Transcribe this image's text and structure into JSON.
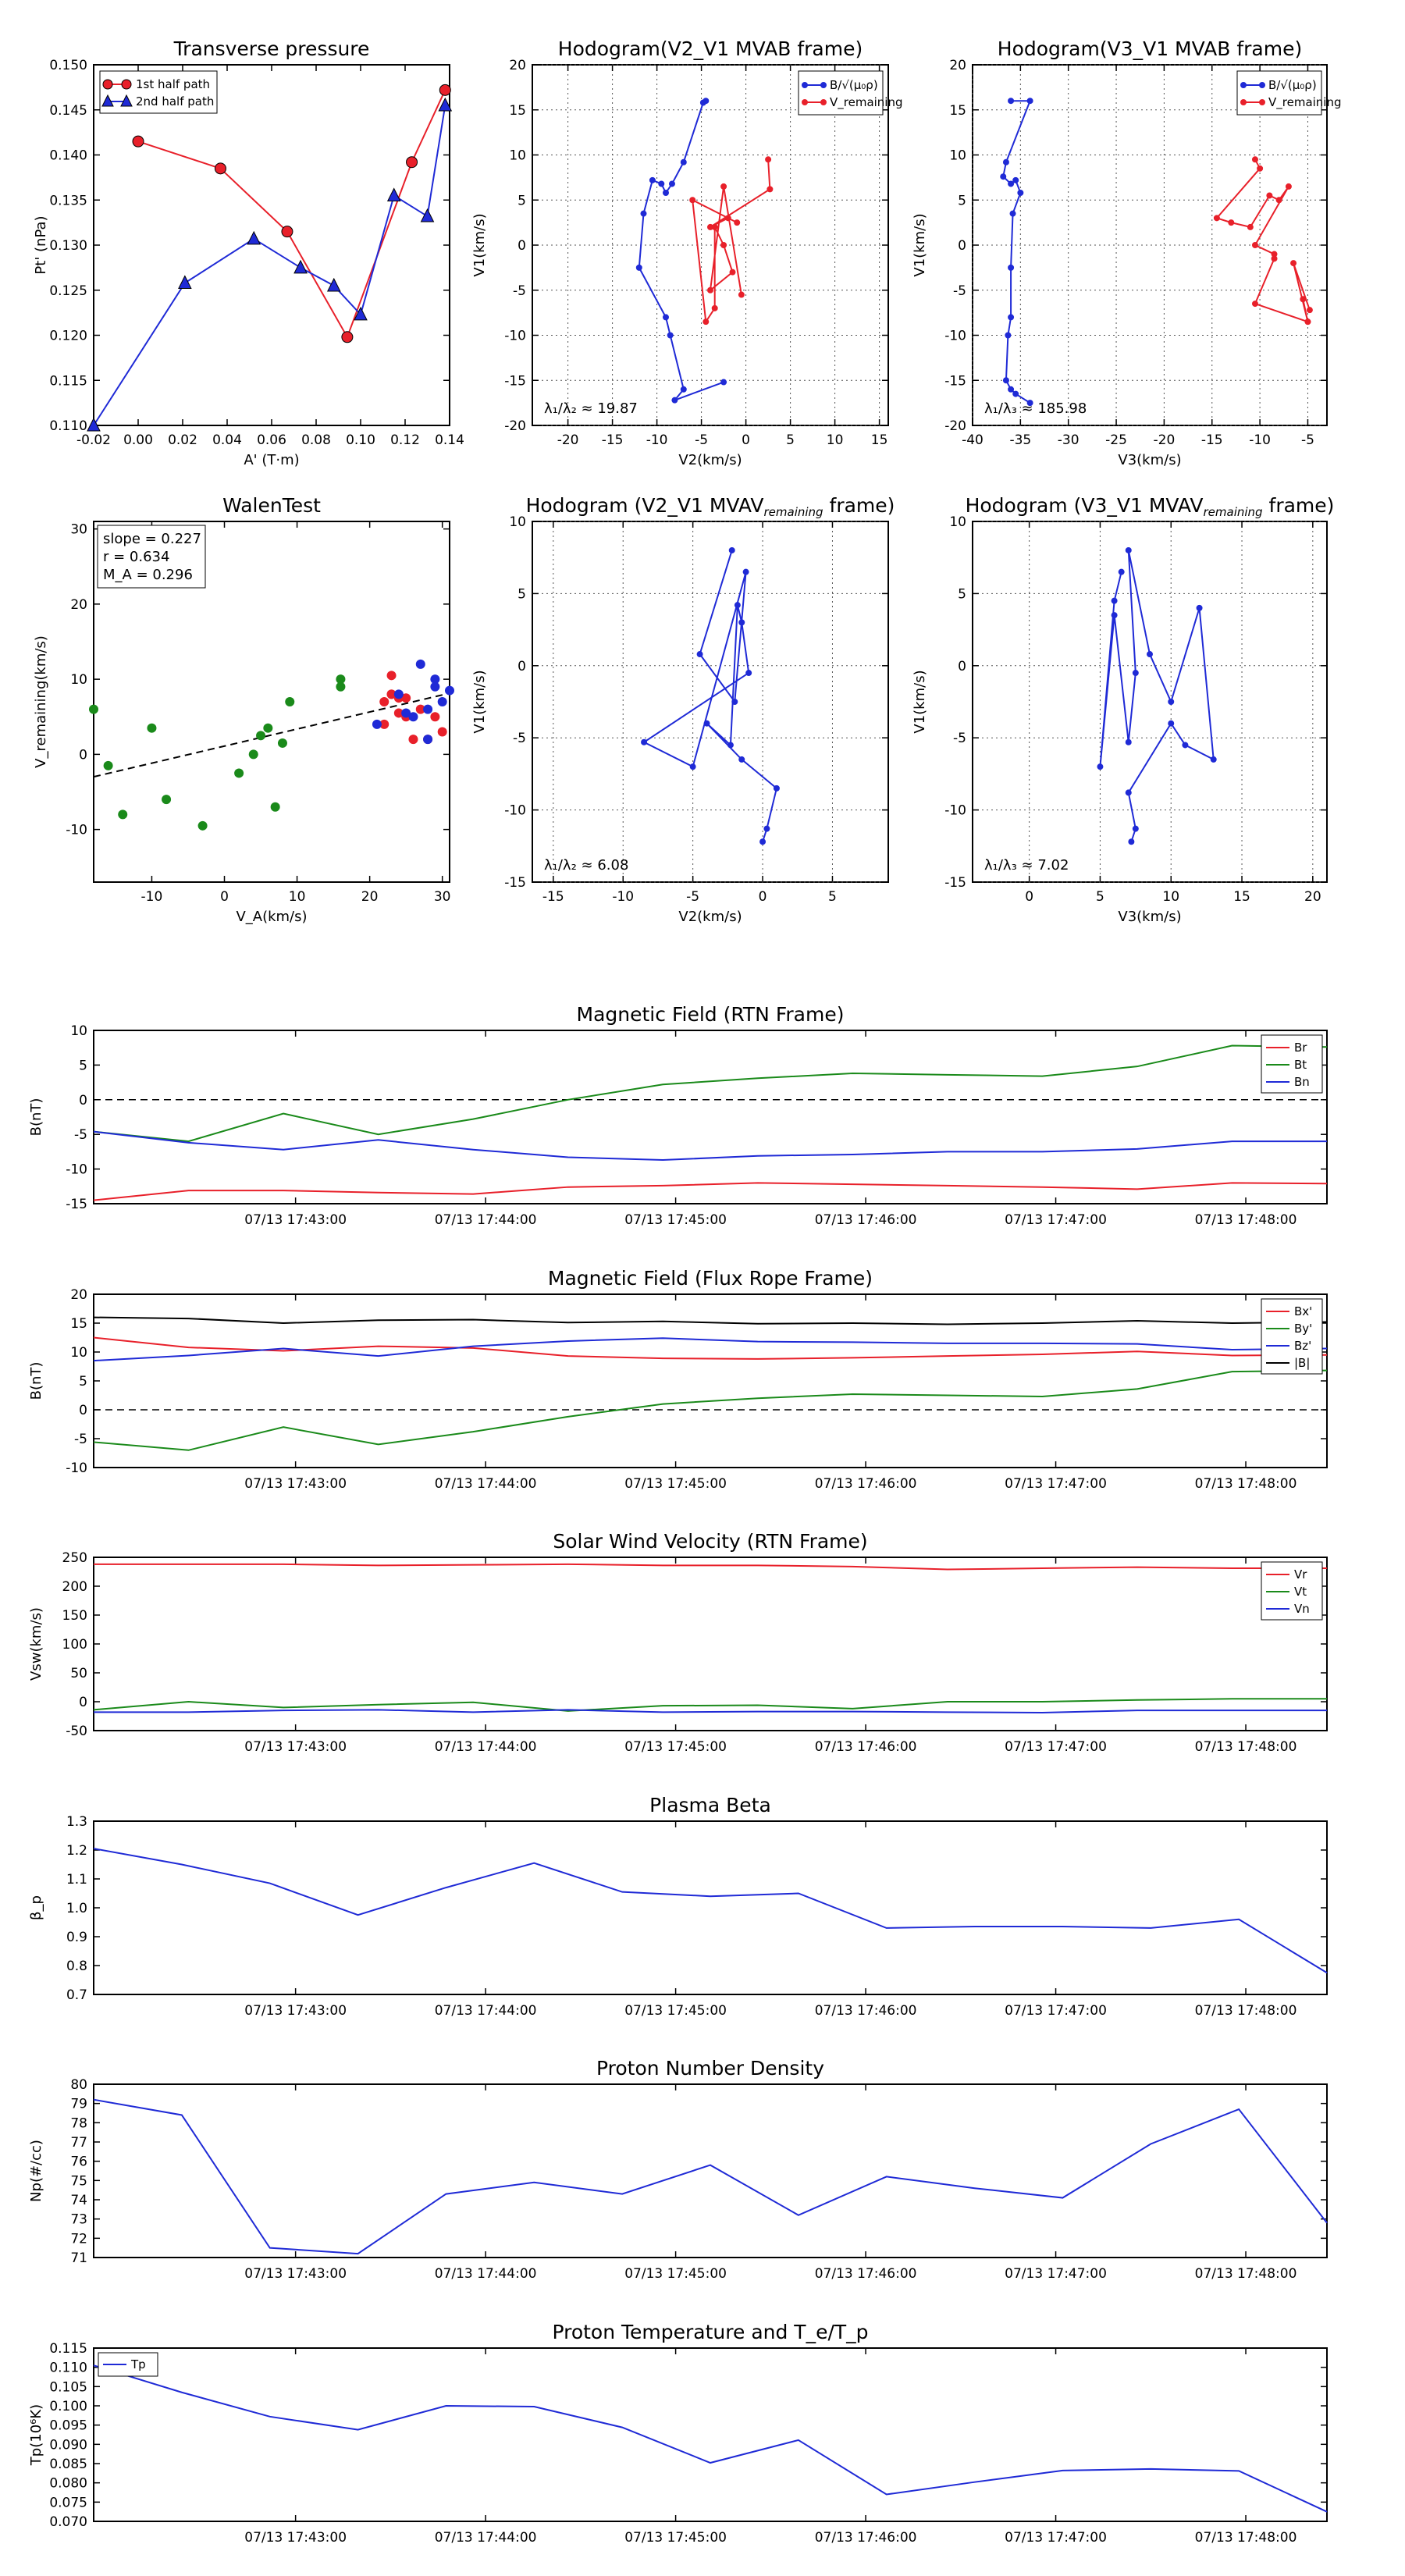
{
  "colors": {
    "red": "#e8202a",
    "blue": "#1f2ad6",
    "green": "#1a8a1a",
    "black": "#000000"
  },
  "chart_data": [
    {
      "id": "tp",
      "type": "line",
      "title": "Transverse pressure",
      "xlabel": "A' (T·m)",
      "ylabel": "Pt' (nPa)",
      "xlim": [
        -0.02,
        0.14
      ],
      "ylim": [
        0.11,
        0.15
      ],
      "xticks": [
        "-0.02",
        "0.00",
        "0.02",
        "0.04",
        "0.06",
        "0.08",
        "0.10",
        "0.12",
        "0.14"
      ],
      "yticks": [
        "0.110",
        "0.115",
        "0.120",
        "0.125",
        "0.130",
        "0.135",
        "0.140",
        "0.145",
        "0.150"
      ],
      "series": [
        {
          "name": "1st half path",
          "color": "red",
          "marker": "circle",
          "x": [
            0.0,
            0.037,
            0.067,
            0.094,
            0.123,
            0.138
          ],
          "y": [
            0.1415,
            0.1385,
            0.1315,
            0.1198,
            0.1392,
            0.1472
          ]
        },
        {
          "name": "2nd half path",
          "color": "blue",
          "marker": "triangle",
          "x": [
            -0.02,
            0.021,
            0.052,
            0.073,
            0.088,
            0.1,
            0.115,
            0.13,
            0.138
          ],
          "y": [
            0.11,
            0.1258,
            0.1307,
            0.1275,
            0.1255,
            0.1223,
            0.1355,
            0.1332,
            0.1455
          ]
        }
      ],
      "legend_position": "top-left"
    },
    {
      "id": "h1",
      "type": "line",
      "title": "Hodogram(V2_V1 MVAB frame)",
      "xlabel": "V2(km/s)",
      "ylabel": "V1(km/s)",
      "xlim": [
        -24,
        16
      ],
      "ylim": [
        -20,
        20
      ],
      "xticks": [
        "-20",
        "-15",
        "-10",
        "-5",
        "0",
        "5",
        "10",
        "15"
      ],
      "yticks": [
        "-20",
        "-15",
        "-10",
        "-5",
        "0",
        "5",
        "10",
        "15",
        "20"
      ],
      "annotation": "λ₁/λ₂ ≈ 19.87",
      "series": [
        {
          "name": "B/√(μ₀ρ)",
          "color": "blue",
          "x": [
            -4.5,
            -4.8,
            -7,
            -8.3,
            -9,
            -9.5,
            -10.5,
            -11.5,
            -12,
            -9,
            -8.5,
            -7,
            -8,
            -2.5
          ],
          "y": [
            16,
            15.8,
            9.2,
            6.8,
            5.8,
            6.8,
            7.2,
            3.5,
            -2.5,
            -8,
            -10,
            -16,
            -17.2,
            -15.2
          ]
        },
        {
          "name": "V_remaining",
          "color": "red",
          "x": [
            2.5,
            2.7,
            -4,
            -2,
            -1,
            -6,
            -4.5,
            -3.5,
            -3.5,
            -2.5,
            -1.5,
            -4,
            -2.5,
            -0.5
          ],
          "y": [
            9.5,
            6.2,
            2,
            3,
            2.5,
            5,
            -8.5,
            -7,
            2,
            0,
            -3,
            -5,
            6.5,
            -5.5
          ]
        }
      ],
      "legend_position": "top-right"
    },
    {
      "id": "h2",
      "type": "line",
      "title": "Hodogram(V3_V1 MVAB frame)",
      "xlabel": "V3(km/s)",
      "ylabel": "V1(km/s)",
      "xlim": [
        -40,
        -3
      ],
      "ylim": [
        -20,
        20
      ],
      "xticks": [
        "-40",
        "-35",
        "-30",
        "-25",
        "-20",
        "-15",
        "-10",
        "-5"
      ],
      "yticks": [
        "-20",
        "-15",
        "-10",
        "-5",
        "0",
        "5",
        "10",
        "15",
        "20"
      ],
      "annotation": "λ₁/λ₃ ≈ 185.98",
      "series": [
        {
          "name": "B/√(μ₀ρ)",
          "color": "blue",
          "x": [
            -36,
            -34,
            -36.5,
            -36.8,
            -36,
            -35.5,
            -35,
            -35.8,
            -36,
            -36,
            -36.3,
            -36.5,
            -36,
            -35.5,
            -34
          ],
          "y": [
            16,
            16,
            9.2,
            7.6,
            6.8,
            7.2,
            5.8,
            3.5,
            -2.5,
            -8,
            -10,
            -15,
            -16,
            -16.5,
            -17.5
          ]
        },
        {
          "name": "V_remaining",
          "color": "red",
          "x": [
            -10.5,
            -10,
            -14.5,
            -13,
            -11,
            -9,
            -8,
            -7,
            -10.5,
            -8.5,
            -8.5,
            -10.5,
            -5,
            -5.5,
            -5,
            -6.5,
            -4.8
          ],
          "y": [
            9.5,
            8.5,
            3,
            2.5,
            2,
            5.5,
            5,
            6.5,
            0,
            -1,
            -1.5,
            -6.5,
            -8.5,
            -6,
            -8.5,
            -2,
            -7.2
          ]
        }
      ],
      "legend_position": "top-right"
    },
    {
      "id": "walen",
      "type": "scatter",
      "title": "WalenTest",
      "xlabel": "V_A(km/s)",
      "ylabel": "V_remaining(km/s)",
      "xlim": [
        -18,
        31
      ],
      "ylim": [
        -17,
        31
      ],
      "xticks": [
        "-10",
        "0",
        "10",
        "20",
        "30"
      ],
      "yticks": [
        "-10",
        "0",
        "10",
        "20",
        "30"
      ],
      "stats": [
        "slope = 0.227",
        "r = 0.634",
        "M_A = 0.296"
      ],
      "fit": {
        "slope": 0.227,
        "intercept": 1.1
      },
      "series": [
        {
          "name": "green",
          "color": "green",
          "x": [
            -18,
            -16,
            -14,
            -10,
            -8,
            -3,
            2,
            4,
            5,
            6,
            7,
            8,
            9,
            16,
            16
          ],
          "y": [
            6,
            -1.5,
            -8,
            3.5,
            -6,
            -9.5,
            -2.5,
            0,
            2.5,
            3.5,
            -7,
            1.5,
            7,
            9,
            10
          ]
        },
        {
          "name": "red",
          "color": "red",
          "x": [
            22,
            22,
            23,
            23,
            23,
            24,
            24,
            25,
            25,
            26,
            27,
            28,
            29,
            30
          ],
          "y": [
            7,
            4,
            10.5,
            8,
            8,
            7.5,
            5.5,
            5,
            7.5,
            2,
            6,
            2,
            5,
            3
          ]
        },
        {
          "name": "blue",
          "color": "blue",
          "x": [
            21,
            24,
            25,
            26,
            27,
            28,
            28,
            29,
            29,
            30,
            31
          ],
          "y": [
            4,
            8,
            5.5,
            5,
            12,
            6,
            2,
            9,
            10,
            7,
            8.5
          ]
        }
      ]
    },
    {
      "id": "h3",
      "type": "line",
      "title": "Hodogram (V2_V1 MVAV",
      "title_sub": "remaining",
      "title_end": " frame)",
      "xlabel": "V2(km/s)",
      "ylabel": "V1(km/s)",
      "xlim": [
        -16.5,
        9
      ],
      "ylim": [
        -15,
        10
      ],
      "xticks": [
        "-15",
        "-10",
        "-5",
        "0",
        "5"
      ],
      "yticks": [
        "-15",
        "-10",
        "-5",
        "0",
        "5",
        "10"
      ],
      "annotation": "λ₁/λ₂ ≈ 6.08",
      "series": [
        {
          "name": "v",
          "color": "blue",
          "x": [
            -2.2,
            -4.5,
            -2,
            -1.2,
            -5,
            -8.5,
            -1,
            -1.5,
            -1.8,
            -2.3,
            -4,
            -1.5,
            1,
            0.3,
            0
          ],
          "y": [
            8,
            0.8,
            -2.5,
            6.5,
            -7,
            -5.3,
            -0.5,
            3,
            4.2,
            -5.5,
            -4,
            -6.5,
            -8.5,
            -11.3,
            -12.2
          ]
        }
      ]
    },
    {
      "id": "h4",
      "type": "line",
      "title": "Hodogram (V3_V1 MVAV",
      "title_sub": "remaining",
      "title_end": " frame)",
      "xlabel": "V3(km/s)",
      "ylabel": "V1(km/s)",
      "xlim": [
        -4,
        21
      ],
      "ylim": [
        -15,
        10
      ],
      "xticks": [
        "0",
        "5",
        "10",
        "15",
        "20"
      ],
      "yticks": [
        "-15",
        "-10",
        "-5",
        "0",
        "5",
        "10"
      ],
      "annotation": "λ₁/λ₃ ≈ 7.02",
      "series": [
        {
          "name": "v",
          "color": "blue",
          "x": [
            6.5,
            6,
            5,
            6,
            7,
            7.5,
            7,
            8.5,
            10,
            12,
            13,
            11,
            10,
            7,
            7.5,
            7.2
          ],
          "y": [
            6.5,
            4.5,
            -7,
            3.5,
            -5.3,
            -0.5,
            8,
            0.8,
            -2.5,
            4,
            -6.5,
            -5.5,
            -4,
            -8.8,
            -11.3,
            -12.2
          ]
        }
      ]
    },
    {
      "id": "mag_rtn",
      "type": "line",
      "title": "Magnetic Field (RTN Frame)",
      "ylabel": "B(nT)",
      "ylim": [
        -15,
        10
      ],
      "yticks": [
        "-15",
        "-10",
        "-5",
        "0",
        "5",
        "10"
      ],
      "xticks": [
        "07/13 17:43:00",
        "07/13 17:44:00",
        "07/13 17:45:00",
        "07/13 17:46:00",
        "07/13 17:47:00",
        "07/13 17:48:00"
      ],
      "zero_line": true,
      "series": [
        {
          "name": "Br",
          "color": "red",
          "values": [
            -14.5,
            -13.1,
            -13.1,
            -13.4,
            -13.6,
            -12.6,
            -12.4,
            -12,
            -12.2,
            -12.4,
            -12.6,
            -12.9,
            -12,
            -12.1
          ]
        },
        {
          "name": "Bt",
          "color": "green",
          "values": [
            -4.6,
            -6,
            -2,
            -5,
            -2.8,
            0,
            2.2,
            3.1,
            3.8,
            3.6,
            3.4,
            4.8,
            7.8,
            7.6
          ]
        },
        {
          "name": "Bn",
          "color": "blue",
          "values": [
            -4.6,
            -6.2,
            -7.2,
            -5.8,
            -7.2,
            -8.3,
            -8.7,
            -8.1,
            -7.9,
            -7.5,
            -7.5,
            -7.1,
            -6,
            -6
          ]
        }
      ]
    },
    {
      "id": "mag_fr",
      "type": "line",
      "title": "Magnetic Field (Flux Rope Frame)",
      "ylabel": "B(nT)",
      "ylim": [
        -10,
        20
      ],
      "yticks": [
        "-10",
        "-5",
        "0",
        "5",
        "10",
        "15",
        "20"
      ],
      "xticks": [
        "07/13 17:43:00",
        "07/13 17:44:00",
        "07/13 17:45:00",
        "07/13 17:46:00",
        "07/13 17:47:00",
        "07/13 17:48:00"
      ],
      "zero_line": true,
      "series": [
        {
          "name": "Bx'",
          "color": "red",
          "values": [
            12.5,
            10.8,
            10.2,
            11,
            10.7,
            9.3,
            8.9,
            8.8,
            9,
            9.3,
            9.6,
            10.1,
            9.4,
            9.5
          ]
        },
        {
          "name": "By'",
          "color": "green",
          "values": [
            -5.6,
            -7,
            -3,
            -6,
            -3.8,
            -1.2,
            1,
            2,
            2.7,
            2.5,
            2.3,
            3.6,
            6.6,
            6.8
          ]
        },
        {
          "name": "Bz'",
          "color": "blue",
          "values": [
            8.5,
            9.4,
            10.6,
            9.3,
            11,
            11.9,
            12.4,
            11.8,
            11.7,
            11.5,
            11.5,
            11.4,
            10.4,
            10.6
          ]
        },
        {
          "name": "|B|",
          "color": "black",
          "values": [
            16,
            15.8,
            15,
            15.5,
            15.6,
            15.1,
            15.3,
            14.9,
            15,
            14.8,
            15,
            15.4,
            15,
            15.2
          ]
        }
      ]
    },
    {
      "id": "vsw",
      "type": "line",
      "title": "Solar Wind Velocity (RTN Frame)",
      "ylabel": "Vsw(km/s)",
      "ylim": [
        -50,
        250
      ],
      "yticks": [
        "-50",
        "0",
        "50",
        "100",
        "150",
        "200",
        "250"
      ],
      "xticks": [
        "07/13 17:43:00",
        "07/13 17:44:00",
        "07/13 17:45:00",
        "07/13 17:46:00",
        "07/13 17:47:00",
        "07/13 17:48:00"
      ],
      "series": [
        {
          "name": "Vr",
          "color": "red",
          "values": [
            238,
            238,
            238,
            236,
            237,
            238,
            236,
            236,
            234,
            229,
            231,
            233,
            231,
            231
          ]
        },
        {
          "name": "Vt",
          "color": "green",
          "values": [
            -14,
            0,
            -10,
            -5,
            -1,
            -16,
            -7,
            -6,
            -12,
            0,
            0,
            3,
            5,
            5
          ]
        },
        {
          "name": "Vn",
          "color": "blue",
          "values": [
            -18,
            -18,
            -15,
            -14,
            -18,
            -14,
            -18,
            -17,
            -17,
            -18,
            -19,
            -15,
            -15,
            -15
          ]
        }
      ]
    },
    {
      "id": "beta",
      "type": "line",
      "title": "Plasma Beta",
      "ylabel": "β_p",
      "ylim": [
        0.7,
        1.3
      ],
      "yticks": [
        "0.7",
        "0.8",
        "0.9",
        "1.0",
        "1.1",
        "1.2",
        "1.3"
      ],
      "xticks": [
        "07/13 17:43:00",
        "07/13 17:44:00",
        "07/13 17:45:00",
        "07/13 17:46:00",
        "07/13 17:47:00",
        "07/13 17:48:00"
      ],
      "series": [
        {
          "name": "beta",
          "color": "blue",
          "values": [
            1.205,
            1.15,
            1.085,
            0.975,
            1.07,
            1.155,
            1.055,
            1.04,
            1.05,
            0.93,
            0.935,
            0.935,
            0.93,
            0.96,
            0.775
          ]
        }
      ]
    },
    {
      "id": "np",
      "type": "line",
      "title": "Proton Number Density",
      "ylabel": "Np(#/cc)",
      "ylim": [
        71,
        80
      ],
      "yticks": [
        "71",
        "72",
        "73",
        "74",
        "75",
        "76",
        "77",
        "78",
        "79",
        "80"
      ],
      "xticks": [
        "07/13 17:43:00",
        "07/13 17:44:00",
        "07/13 17:45:00",
        "07/13 17:46:00",
        "07/13 17:47:00",
        "07/13 17:48:00"
      ],
      "series": [
        {
          "name": "np",
          "color": "blue",
          "values": [
            79.2,
            78.4,
            71.5,
            71.2,
            74.3,
            74.9,
            74.3,
            75.8,
            73.2,
            75.2,
            74.6,
            74.1,
            76.9,
            78.7,
            72.8
          ]
        }
      ]
    },
    {
      "id": "tp_temp",
      "type": "line",
      "title": "Proton Temperature and T_e/T_p",
      "ylabel": "Tp(10⁶K)",
      "ylim": [
        0.07,
        0.115
      ],
      "yticks": [
        "0.070",
        "0.075",
        "0.080",
        "0.085",
        "0.090",
        "0.095",
        "0.100",
        "0.105",
        "0.110",
        "0.115"
      ],
      "xticks": [
        "07/13 17:43:00",
        "07/13 17:44:00",
        "07/13 17:45:00",
        "07/13 17:46:00",
        "07/13 17:47:00",
        "07/13 17:48:00"
      ],
      "legend_position": "top-left",
      "series": [
        {
          "name": "Tp",
          "color": "blue",
          "values": [
            0.1105,
            0.1035,
            0.0972,
            0.0938,
            0.1,
            0.0998,
            0.0944,
            0.0852,
            0.0911,
            0.077,
            0.0802,
            0.0832,
            0.0836,
            0.0831,
            0.0725
          ]
        }
      ]
    }
  ]
}
